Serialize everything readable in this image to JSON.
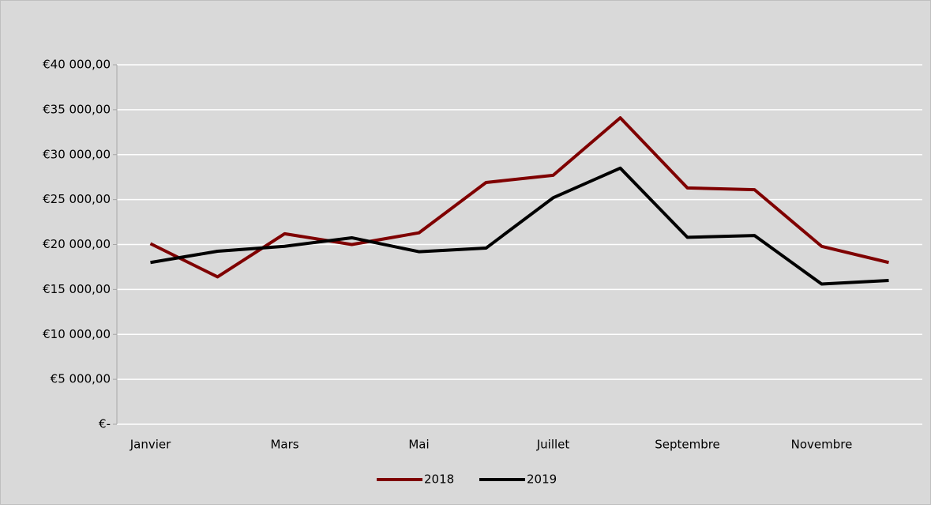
{
  "chart_data": {
    "type": "line",
    "categories": [
      "Janvier",
      null,
      "Mars",
      null,
      "Mai",
      null,
      "Juillet",
      null,
      "Septembre",
      null,
      "Novembre",
      null
    ],
    "series": [
      {
        "name": "2018",
        "color": "#7f0000",
        "values": [
          20100,
          16400,
          21200,
          20000,
          21300,
          26900,
          27700,
          34100,
          26300,
          26100,
          19800,
          18000
        ]
      },
      {
        "name": "2019",
        "color": "#000000",
        "values": [
          18000,
          19250,
          19800,
          20750,
          19200,
          19600,
          25200,
          28500,
          20800,
          21000,
          15600,
          16000
        ]
      }
    ],
    "ylim": [
      0,
      40000
    ],
    "yticks": [
      {
        "value": 0,
        "label": "€-"
      },
      {
        "value": 5000,
        "label": "€5 000,00"
      },
      {
        "value": 10000,
        "label": "€10 000,00"
      },
      {
        "value": 15000,
        "label": "€15 000,00"
      },
      {
        "value": 20000,
        "label": "€20 000,00"
      },
      {
        "value": 25000,
        "label": "€25 000,00"
      },
      {
        "value": 30000,
        "label": "€30 000,00"
      },
      {
        "value": 35000,
        "label": "€35 000,00"
      },
      {
        "value": 40000,
        "label": "€40 000,00"
      }
    ],
    "grid": true,
    "legend": "bottom"
  }
}
